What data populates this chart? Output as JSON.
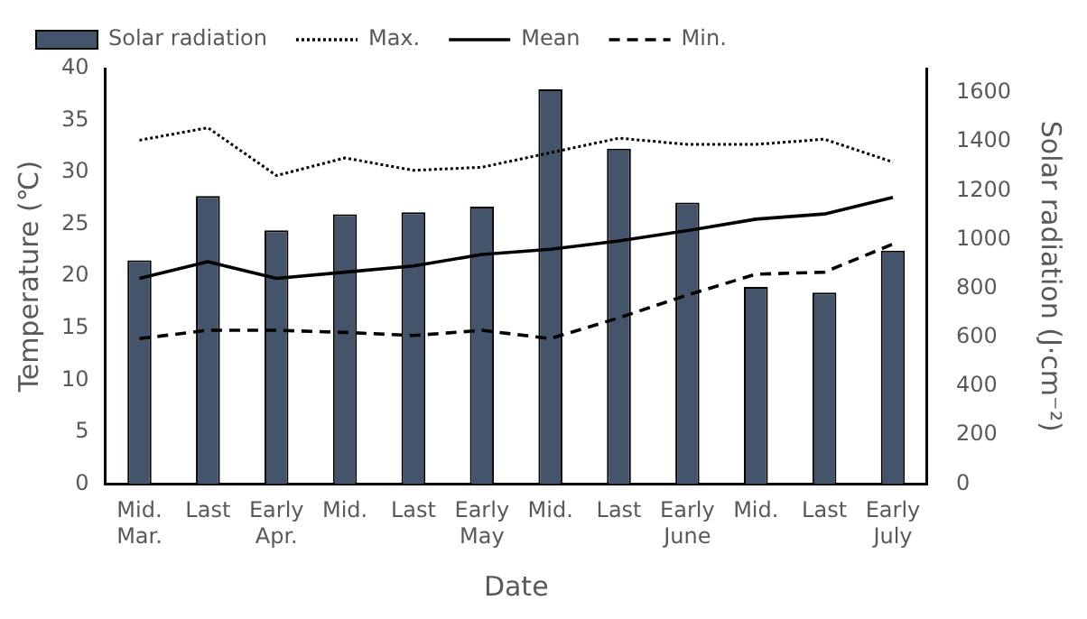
{
  "chart_data": {
    "type": "bar",
    "xlabel": "Date",
    "ylabel": "Temperature (℃)",
    "y2label": "Solar radiation (J·cm⁻²)",
    "categories": [
      [
        "Mid.",
        "Mar."
      ],
      [
        "Last"
      ],
      [
        "Early",
        "Apr."
      ],
      [
        "Mid."
      ],
      [
        "Last"
      ],
      [
        "Early",
        "May"
      ],
      [
        "Mid."
      ],
      [
        "Last"
      ],
      [
        "Early",
        "June"
      ],
      [
        "Mid."
      ],
      [
        "Last"
      ],
      [
        "Early",
        "July"
      ]
    ],
    "series": [
      {
        "name": "Solar radiation",
        "axis": "y2",
        "color": "#44546a",
        "values": [
          915,
          1178,
          1038,
          1104,
          1112,
          1135,
          1615,
          1372,
          1152,
          806,
          783,
          955
        ]
      },
      {
        "name": "Max.",
        "type": "line",
        "line_style": "dotted",
        "color": "#000000",
        "values": [
          33.1,
          34.3,
          29.7,
          31.4,
          30.2,
          30.5,
          31.9,
          33.3,
          32.7,
          32.7,
          33.2,
          31.0
        ]
      },
      {
        "name": "Mean",
        "type": "line",
        "line_style": "solid",
        "color": "#000000",
        "values": [
          19.8,
          21.4,
          19.8,
          20.4,
          21.0,
          22.1,
          22.6,
          23.4,
          24.4,
          25.5,
          26.0,
          27.6
        ]
      },
      {
        "name": "Min.",
        "type": "line",
        "line_style": "dashed",
        "color": "#000000",
        "values": [
          14.0,
          14.8,
          14.8,
          14.6,
          14.3,
          14.8,
          14.0,
          16.0,
          18.2,
          20.2,
          20.4,
          23.1
        ]
      }
    ],
    "ylim": [
      0,
      40
    ],
    "yticks": [
      0,
      5,
      10,
      15,
      20,
      25,
      30,
      35,
      40
    ],
    "y2lim": [
      0,
      1700
    ],
    "y2ticks": [
      0,
      200,
      400,
      600,
      800,
      1000,
      1200,
      1400,
      1600
    ],
    "grid": false,
    "legend": "top",
    "marker": "none"
  }
}
